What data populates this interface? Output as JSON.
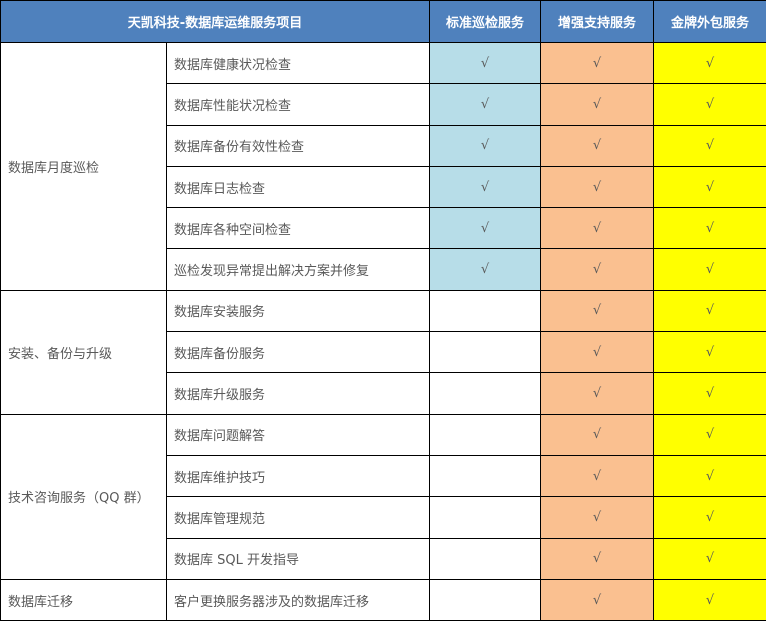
{
  "header": {
    "title": "天凯科技-数据库运维服务项目",
    "plans": [
      "标准巡检服务",
      "增强支持服务",
      "金牌外包服务"
    ]
  },
  "colors": {
    "header": "#4f81bd",
    "standard": "#b7dde8",
    "enhanced": "#fac090",
    "gold": "#ffff00"
  },
  "check": "√",
  "groups": [
    {
      "name": "数据库月度巡检",
      "items": [
        {
          "label": "数据库健康状况检查",
          "plans": [
            true,
            true,
            true
          ]
        },
        {
          "label": "数据库性能状况检查",
          "plans": [
            true,
            true,
            true
          ]
        },
        {
          "label": "数据库备份有效性检查",
          "plans": [
            true,
            true,
            true
          ]
        },
        {
          "label": "数据库日志检查",
          "plans": [
            true,
            true,
            true
          ]
        },
        {
          "label": "数据库各种空间检查",
          "plans": [
            true,
            true,
            true
          ]
        },
        {
          "label": "巡检发现异常提出解决方案并修复",
          "plans": [
            true,
            true,
            true
          ]
        }
      ]
    },
    {
      "name": "安装、备份与升级",
      "items": [
        {
          "label": "数据库安装服务",
          "plans": [
            false,
            true,
            true
          ]
        },
        {
          "label": "数据库备份服务",
          "plans": [
            false,
            true,
            true
          ]
        },
        {
          "label": "数据库升级服务",
          "plans": [
            false,
            true,
            true
          ]
        }
      ]
    },
    {
      "name": "技术咨询服务（QQ 群）",
      "items": [
        {
          "label": "数据库问题解答",
          "plans": [
            false,
            true,
            true
          ]
        },
        {
          "label": "数据库维护技巧",
          "plans": [
            false,
            true,
            true
          ]
        },
        {
          "label": "数据库管理规范",
          "plans": [
            false,
            true,
            true
          ]
        },
        {
          "label": "数据库 SQL 开发指导",
          "plans": [
            false,
            true,
            true
          ]
        }
      ]
    },
    {
      "name": "数据库迁移",
      "items": [
        {
          "label": "客户更换服务器涉及的数据库迁移",
          "plans": [
            false,
            true,
            true
          ]
        }
      ]
    }
  ]
}
